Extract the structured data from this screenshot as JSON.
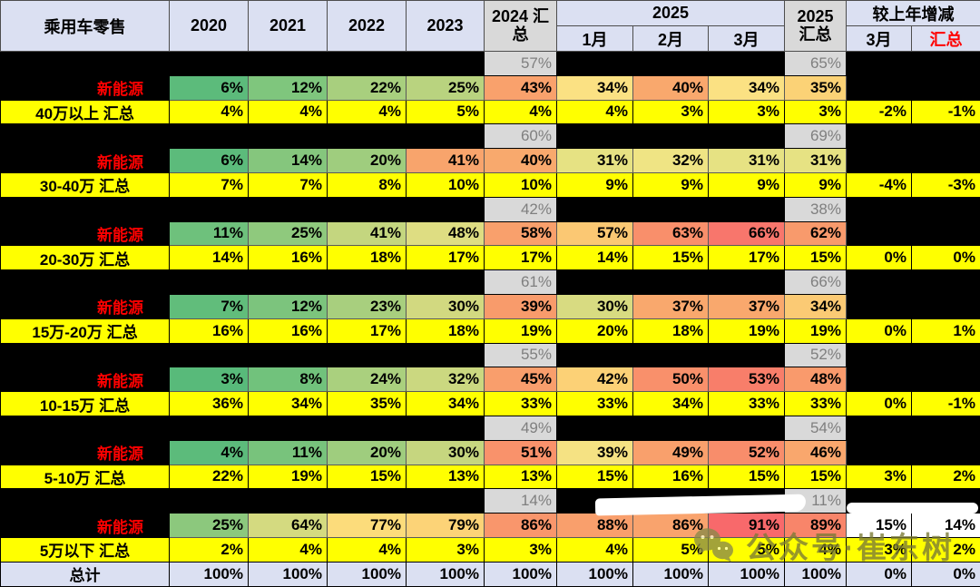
{
  "header": {
    "title": "乘用车零售",
    "years": [
      "2020",
      "2021",
      "2022",
      "2023"
    ],
    "col_2024": "2024 汇总",
    "group_2025": "2025",
    "months": [
      "1月",
      "2月",
      "3月"
    ],
    "col_2025": "2025 汇总",
    "group_yoy": "较上年增减",
    "yoy_cols": [
      "3月",
      "汇总"
    ]
  },
  "colors": {
    "header_bg": "#dbe0f2",
    "gray_cell_bg": "#d9d9d9",
    "gray_text": "#7f7f7f",
    "highlight_yellow": "#ffff00",
    "ne_label_red": "#ff0000",
    "yoy_header_red": "#ff0000",
    "black_bg": "#000000",
    "green_scale_low": "#63be7b",
    "yellow_scale_mid": "#ffeb84",
    "red_scale_high": "#f8696b",
    "watermark_olive": "#8a8a49"
  },
  "watermark": {
    "icon": "wechat-icon",
    "text": "公众号·崔东树"
  },
  "chart_data": {
    "type": "table",
    "title": "乘用车零售",
    "columns": [
      "乘用车零售",
      "2020",
      "2021",
      "2022",
      "2023",
      "2024 汇总",
      "2025 1月",
      "2025 2月",
      "2025 3月",
      "2025 汇总",
      "较上年增减 3月",
      "较上年增减 汇总"
    ],
    "ne_label": "新能源",
    "groups": [
      {
        "label": "40万以上 汇总",
        "above": [
          "57%",
          "65%"
        ],
        "ne": [
          "6%",
          "12%",
          "22%",
          "25%",
          "43%",
          "34%",
          "40%",
          "34%",
          "35%"
        ],
        "ne_colors": [
          "#5cbb7b",
          "#7fc67d",
          "#a8cf7e",
          "#b9d37f",
          "#f9a16c",
          "#fbe183",
          "#f9a86d",
          "#fbe183",
          "#fbd276"
        ],
        "ne_yoy": null,
        "total": [
          "4%",
          "4%",
          "4%",
          "5%",
          "4%",
          "4%",
          "3%",
          "3%",
          "3%",
          "-2%",
          "-1%"
        ]
      },
      {
        "label": "30-40万 汇总",
        "above": [
          "60%",
          "69%"
        ],
        "ne": [
          "6%",
          "14%",
          "20%",
          "41%",
          "40%",
          "31%",
          "32%",
          "31%",
          "31%"
        ],
        "ne_colors": [
          "#5cbb7b",
          "#85c67d",
          "#9fcd7e",
          "#f8a46c",
          "#f8a96d",
          "#e6e283",
          "#efe484",
          "#e6e283",
          "#e6e283"
        ],
        "ne_yoy": null,
        "total": [
          "7%",
          "7%",
          "8%",
          "10%",
          "10%",
          "9%",
          "9%",
          "9%",
          "9%",
          "-4%",
          "-3%"
        ]
      },
      {
        "label": "20-30万 汇总",
        "above": [
          "42%",
          "38%"
        ],
        "ne": [
          "11%",
          "25%",
          "41%",
          "48%",
          "58%",
          "57%",
          "63%",
          "66%",
          "62%"
        ],
        "ne_colors": [
          "#6ec17c",
          "#8fc97d",
          "#c4d67f",
          "#dedd82",
          "#f9a06c",
          "#fbc873",
          "#f98f6b",
          "#f8766c",
          "#f89a6c"
        ],
        "ne_yoy": null,
        "total": [
          "14%",
          "16%",
          "18%",
          "17%",
          "17%",
          "14%",
          "15%",
          "17%",
          "15%",
          "0%",
          "0%"
        ]
      },
      {
        "label": "15万-20万 汇总",
        "above": [
          "61%",
          "66%"
        ],
        "ne": [
          "7%",
          "12%",
          "23%",
          "30%",
          "39%",
          "30%",
          "37%",
          "37%",
          "34%"
        ],
        "ne_colors": [
          "#61bd7b",
          "#7cc47d",
          "#a8cf7e",
          "#d2d980",
          "#f89b6b",
          "#d8db81",
          "#f9a86d",
          "#f9a86d",
          "#fbca74"
        ],
        "ne_yoy": null,
        "total": [
          "16%",
          "16%",
          "17%",
          "18%",
          "19%",
          "20%",
          "18%",
          "19%",
          "19%",
          "0%",
          "1%"
        ]
      },
      {
        "label": "10-15万 汇总",
        "above": [
          "55%",
          "52%"
        ],
        "ne": [
          "3%",
          "8%",
          "24%",
          "32%",
          "45%",
          "42%",
          "50%",
          "53%",
          "48%"
        ],
        "ne_colors": [
          "#58ba7a",
          "#71c27c",
          "#aad07e",
          "#cbd880",
          "#f99e6c",
          "#fcd176",
          "#f9906b",
          "#f87e6a",
          "#f99a6c"
        ],
        "ne_yoy": null,
        "total": [
          "36%",
          "34%",
          "35%",
          "34%",
          "33%",
          "33%",
          "34%",
          "33%",
          "33%",
          "0%",
          "-1%"
        ]
      },
      {
        "label": "5-10万 汇总",
        "above": [
          "49%",
          "54%"
        ],
        "ne": [
          "4%",
          "11%",
          "20%",
          "30%",
          "51%",
          "39%",
          "49%",
          "52%",
          "46%"
        ],
        "ne_colors": [
          "#5cbb7b",
          "#78c37c",
          "#9fcd7e",
          "#c6d67f",
          "#f9926b",
          "#f5e283",
          "#f9a06c",
          "#f88d6b",
          "#f9a76d"
        ],
        "ne_yoy": null,
        "total": [
          "22%",
          "19%",
          "15%",
          "13%",
          "13%",
          "15%",
          "16%",
          "15%",
          "15%",
          "3%",
          "2%"
        ]
      },
      {
        "label": "5万以下 汇总",
        "above": [
          "14%",
          "11%"
        ],
        "ne": [
          "25%",
          "64%",
          "77%",
          "79%",
          "86%",
          "88%",
          "86%",
          "91%",
          "89%"
        ],
        "ne_colors": [
          "#8cc87d",
          "#d4da80",
          "#fcdc7b",
          "#fcd377",
          "#f9966c",
          "#f99f6c",
          "#f9a36d",
          "#f8696b",
          "#f8856a"
        ],
        "ne_yoy": [
          "15%",
          "14%"
        ],
        "total": [
          "2%",
          "4%",
          "4%",
          "3%",
          "3%",
          "4%",
          "5%",
          "5%",
          "4%",
          "3%",
          "2%"
        ]
      }
    ],
    "grand_total": {
      "label": "总计",
      "values": [
        "100%",
        "100%",
        "100%",
        "100%",
        "100%",
        "100%",
        "100%",
        "100%",
        "100%",
        "0%",
        "0%"
      ]
    }
  }
}
